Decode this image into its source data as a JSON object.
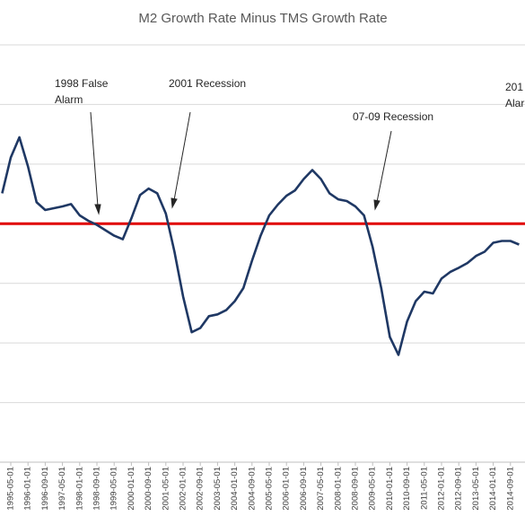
{
  "chart_data": {
    "type": "line",
    "title": "M2 Growth Rate Minus TMS Growth Rate",
    "categories": [
      null,
      "1995-05-01",
      null,
      "1996-01-01",
      null,
      "1996-09-01",
      null,
      "1997-05-01",
      null,
      "1998-01-01",
      null,
      "1998-09-01",
      null,
      "1999-05-01",
      null,
      "2000-01-01",
      null,
      "2000-09-01",
      null,
      "2001-05-01",
      null,
      "2002-01-01",
      null,
      "2002-09-01",
      null,
      "2003-05-01",
      null,
      "2004-01-01",
      null,
      "2004-09-01",
      null,
      "2005-05-01",
      null,
      "2006-01-01",
      null,
      "2006-09-01",
      null,
      "2007-05-01",
      null,
      "2008-01-01",
      null,
      "2008-09-01",
      null,
      "2009-05-01",
      null,
      "2010-01-01",
      null,
      "2010-09-01",
      null,
      "2011-05-01",
      null,
      "2012-01-01",
      null,
      "2012-09-01",
      null,
      "2013-05-01",
      null,
      "2014-01-01",
      null,
      "2014-09-01",
      null
    ],
    "series": [
      {
        "color": "#1f3864",
        "values": [
          0.51,
          1.11,
          1.45,
          0.96,
          0.36,
          0.23,
          0.26,
          0.29,
          0.33,
          0.14,
          0.05,
          -0.02,
          -0.11,
          -0.2,
          -0.26,
          0.09,
          0.48,
          0.59,
          0.51,
          0.17,
          -0.47,
          -1.22,
          -1.82,
          -1.75,
          -1.55,
          -1.52,
          -1.45,
          -1.3,
          -1.08,
          -0.62,
          -0.2,
          0.14,
          0.32,
          0.47,
          0.56,
          0.75,
          0.9,
          0.75,
          0.51,
          0.41,
          0.38,
          0.29,
          0.14,
          -0.39,
          -1.08,
          -1.9,
          -2.2,
          -1.64,
          -1.3,
          -1.14,
          -1.17,
          -0.92,
          -0.81,
          -0.74,
          -0.66,
          -0.54,
          -0.47,
          -0.32,
          -0.29,
          -0.29,
          -0.35
        ]
      }
    ],
    "ylim": [
      -4,
      3
    ],
    "yticks": [
      -4,
      -3,
      -2,
      -1,
      0,
      1,
      2,
      3
    ],
    "grid": true,
    "reference_line": {
      "value": 0,
      "color": "#e00000"
    },
    "annotations": [
      {
        "lines": [
          "1998 False",
          "Alarm"
        ]
      },
      {
        "lines": [
          "2001 Recession"
        ]
      },
      {
        "lines": [
          "07-09 Recession"
        ]
      },
      {
        "lines": [
          "201",
          "Alar"
        ]
      }
    ]
  }
}
